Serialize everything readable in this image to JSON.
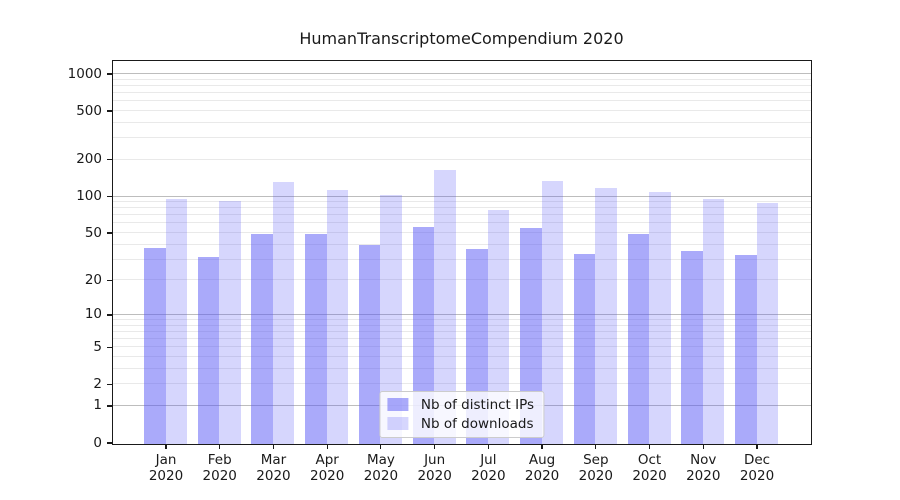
{
  "chart_data": {
    "type": "bar",
    "title": "HumanTranscriptomeCompendium 2020",
    "categories": [
      "Jan",
      "Feb",
      "Mar",
      "Apr",
      "May",
      "Jun",
      "Jul",
      "Aug",
      "Sep",
      "Oct",
      "Nov",
      "Dec"
    ],
    "x_tick_year": "2020",
    "series": [
      {
        "name": "Nb of distinct IPs",
        "values": [
          38,
          32,
          50,
          50,
          40,
          57,
          37,
          56,
          34,
          50,
          36,
          33
        ],
        "color": "rgba(85,85,245,0.5)"
      },
      {
        "name": "Nb of downloads",
        "values": [
          97,
          92,
          134,
          115,
          103,
          167,
          78,
          136,
          118,
          111,
          97,
          90
        ],
        "color": "rgba(85,85,245,0.24)"
      }
    ],
    "yscale": "log1p",
    "ylim": [
      0,
      1277
    ],
    "yticks": [
      0,
      1,
      2,
      5,
      10,
      20,
      50,
      100,
      200,
      500,
      1000
    ],
    "major_gridlines": [
      1,
      10,
      100,
      1000
    ],
    "minor_gridline_decades": [
      1,
      10,
      100
    ],
    "grid": true,
    "legend_position": "lower center"
  },
  "colors": {
    "grid_major": "#bdbdbd",
    "grid_minor": "#e9e9e9",
    "axis": "#1a1a1a",
    "text": "#1a1a1a",
    "legend_border": "#cccccc",
    "legend_bg": "rgba(255,255,255,0.8)",
    "background": "#ffffff"
  }
}
